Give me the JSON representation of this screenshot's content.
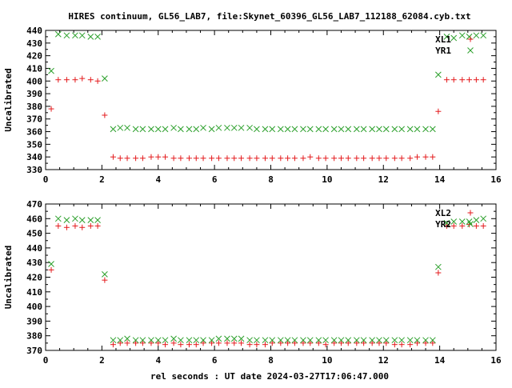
{
  "figure": {
    "title": "HIRES continuum, GL56_LAB7, file:Skynet_60396_GL56_LAB7_112188_62084.cyb.txt",
    "xlabel": "rel seconds : UT date 2024-03-27T17:06:47.000"
  },
  "colors": {
    "red": "#e41a1c",
    "green": "#2ca02c",
    "axis": "#000000"
  },
  "chart_data": [
    {
      "type": "scatter",
      "title": "",
      "xlabel": "",
      "ylabel": "Uncalibrated",
      "xlim": [
        0,
        16
      ],
      "ylim": [
        330,
        440
      ],
      "xticks": [
        0,
        2,
        4,
        6,
        8,
        10,
        12,
        14,
        16
      ],
      "yticks": [
        330,
        340,
        350,
        360,
        370,
        380,
        390,
        400,
        410,
        420,
        430,
        440
      ],
      "grid": false,
      "legend_position": "top-right",
      "series": [
        {
          "name": "XL1",
          "marker": "plus",
          "color": "#e41a1c",
          "x": [
            0.2,
            0.45,
            0.75,
            1.05,
            1.3,
            1.6,
            1.85,
            2.1,
            2.4,
            2.65,
            2.9,
            3.2,
            3.45,
            3.75,
            4.0,
            4.25,
            4.55,
            4.8,
            5.1,
            5.35,
            5.6,
            5.9,
            6.15,
            6.45,
            6.7,
            6.95,
            7.25,
            7.5,
            7.8,
            8.05,
            8.35,
            8.6,
            8.85,
            9.15,
            9.4,
            9.7,
            9.95,
            10.25,
            10.5,
            10.75,
            11.05,
            11.3,
            11.6,
            11.85,
            12.1,
            12.4,
            12.65,
            12.95,
            13.2,
            13.5,
            13.75,
            13.95,
            14.25,
            14.5,
            14.8,
            15.05,
            15.3,
            15.55
          ],
          "y": [
            378,
            401,
            401,
            401,
            402,
            401,
            400,
            373,
            340,
            339,
            339,
            339,
            339,
            340,
            340,
            340,
            339,
            339,
            339,
            339,
            339,
            339,
            339,
            339,
            339,
            339,
            339,
            339,
            339,
            339,
            339,
            339,
            339,
            339,
            340,
            339,
            339,
            339,
            339,
            339,
            339,
            339,
            339,
            339,
            339,
            339,
            339,
            339,
            340,
            340,
            340,
            376,
            401,
            401,
            401,
            401,
            401,
            401
          ]
        },
        {
          "name": "YR1",
          "marker": "cross",
          "color": "#2ca02c",
          "x": [
            0.2,
            0.45,
            0.75,
            1.05,
            1.3,
            1.6,
            1.85,
            2.1,
            2.4,
            2.65,
            2.9,
            3.2,
            3.45,
            3.75,
            4.0,
            4.25,
            4.55,
            4.8,
            5.1,
            5.35,
            5.6,
            5.9,
            6.15,
            6.45,
            6.7,
            6.95,
            7.25,
            7.5,
            7.8,
            8.05,
            8.35,
            8.6,
            8.85,
            9.15,
            9.4,
            9.7,
            9.95,
            10.25,
            10.5,
            10.75,
            11.05,
            11.3,
            11.6,
            11.85,
            12.1,
            12.4,
            12.65,
            12.95,
            13.2,
            13.5,
            13.75,
            13.95,
            14.25,
            14.5,
            14.8,
            15.05,
            15.3,
            15.55
          ],
          "y": [
            408,
            437,
            436,
            436,
            436,
            435,
            435,
            402,
            362,
            363,
            363,
            362,
            362,
            362,
            362,
            362,
            363,
            362,
            362,
            362,
            363,
            362,
            363,
            363,
            363,
            363,
            363,
            362,
            362,
            362,
            362,
            362,
            362,
            362,
            362,
            362,
            362,
            362,
            362,
            362,
            362,
            362,
            362,
            362,
            362,
            362,
            362,
            362,
            362,
            362,
            362,
            405,
            435,
            434,
            436,
            435,
            436,
            436
          ]
        }
      ]
    },
    {
      "type": "scatter",
      "title": "",
      "xlabel": "",
      "ylabel": "Uncalibrated",
      "xlim": [
        0,
        16
      ],
      "ylim": [
        370,
        470
      ],
      "xticks": [
        0,
        2,
        4,
        6,
        8,
        10,
        12,
        14,
        16
      ],
      "yticks": [
        370,
        380,
        390,
        400,
        410,
        420,
        430,
        440,
        450,
        460,
        470
      ],
      "grid": false,
      "legend_position": "top-right",
      "series": [
        {
          "name": "XL2",
          "marker": "plus",
          "color": "#e41a1c",
          "x": [
            0.2,
            0.45,
            0.75,
            1.05,
            1.3,
            1.6,
            1.85,
            2.1,
            2.4,
            2.65,
            2.9,
            3.2,
            3.45,
            3.75,
            4.0,
            4.25,
            4.55,
            4.8,
            5.1,
            5.35,
            5.6,
            5.9,
            6.15,
            6.45,
            6.7,
            6.95,
            7.25,
            7.5,
            7.8,
            8.05,
            8.35,
            8.6,
            8.85,
            9.15,
            9.4,
            9.7,
            9.95,
            10.25,
            10.5,
            10.75,
            11.05,
            11.3,
            11.6,
            11.85,
            12.1,
            12.4,
            12.65,
            12.95,
            13.2,
            13.5,
            13.75,
            13.95,
            14.25,
            14.5,
            14.8,
            15.05,
            15.3,
            15.55
          ],
          "y": [
            425,
            455,
            454,
            455,
            454,
            455,
            455,
            418,
            374,
            375,
            375,
            375,
            375,
            375,
            375,
            374,
            375,
            374,
            374,
            374,
            375,
            375,
            375,
            375,
            375,
            375,
            374,
            374,
            374,
            375,
            375,
            375,
            375,
            375,
            375,
            375,
            374,
            375,
            375,
            375,
            375,
            375,
            375,
            375,
            375,
            374,
            374,
            374,
            375,
            375,
            375,
            423,
            455,
            455,
            455,
            456,
            455,
            455
          ]
        },
        {
          "name": "YR2",
          "marker": "cross",
          "color": "#2ca02c",
          "x": [
            0.2,
            0.45,
            0.75,
            1.05,
            1.3,
            1.6,
            1.85,
            2.1,
            2.4,
            2.65,
            2.9,
            3.2,
            3.45,
            3.75,
            4.0,
            4.25,
            4.55,
            4.8,
            5.1,
            5.35,
            5.6,
            5.9,
            6.15,
            6.45,
            6.7,
            6.95,
            7.25,
            7.5,
            7.8,
            8.05,
            8.35,
            8.6,
            8.85,
            9.15,
            9.4,
            9.7,
            9.95,
            10.25,
            10.5,
            10.75,
            11.05,
            11.3,
            11.6,
            11.85,
            12.1,
            12.4,
            12.65,
            12.95,
            13.2,
            13.5,
            13.75,
            13.95,
            14.25,
            14.5,
            14.8,
            15.05,
            15.3,
            15.55
          ],
          "y": [
            429,
            460,
            459,
            460,
            459,
            459,
            459,
            422,
            377,
            377,
            378,
            377,
            377,
            377,
            377,
            377,
            378,
            377,
            377,
            377,
            377,
            377,
            378,
            378,
            378,
            378,
            377,
            377,
            377,
            377,
            377,
            377,
            377,
            377,
            377,
            377,
            377,
            377,
            377,
            377,
            377,
            377,
            377,
            377,
            377,
            377,
            377,
            377,
            377,
            377,
            377,
            427,
            457,
            458,
            458,
            458,
            459,
            460
          ]
        }
      ]
    }
  ]
}
